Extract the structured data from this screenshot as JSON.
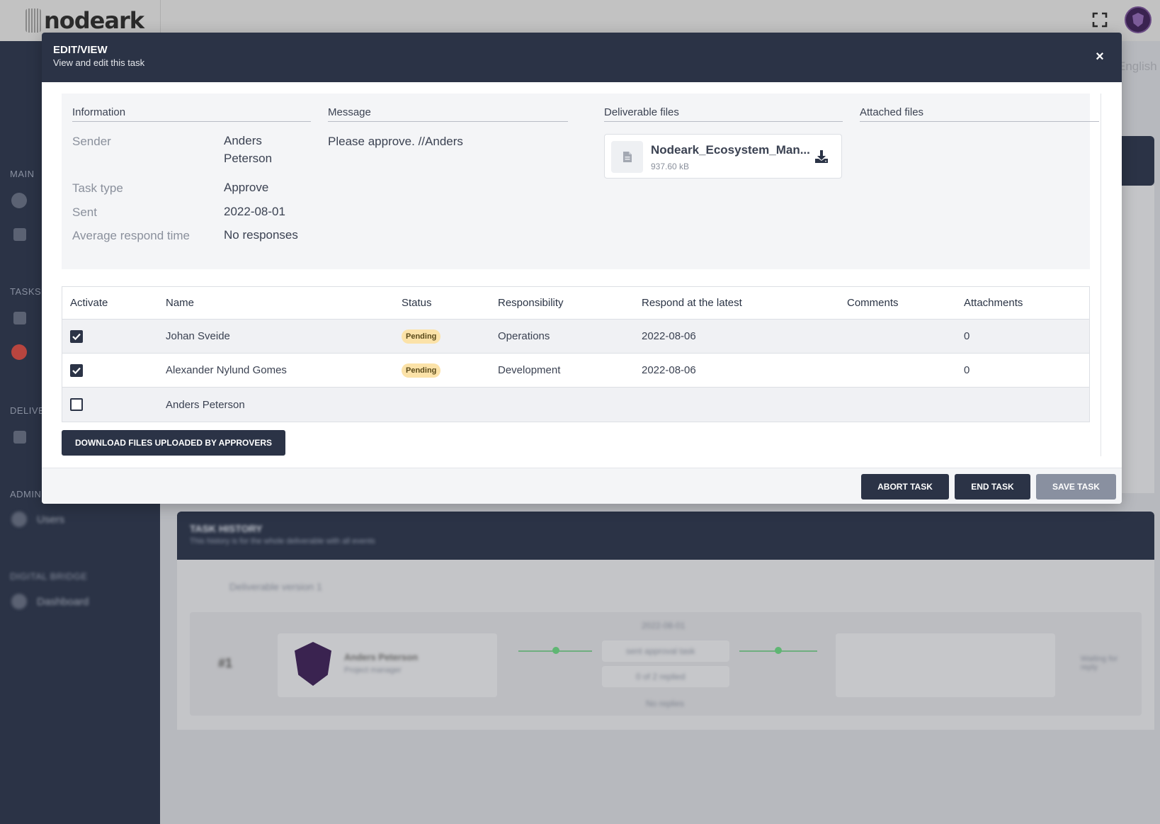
{
  "app": {
    "logo_text": "nodeark",
    "language": "English"
  },
  "sidebar": {
    "sections": [
      "MAIN",
      "TASKS",
      "DELIVE",
      "ADMIN",
      "DIGITAL BRIDGE"
    ],
    "items": [
      "Users",
      "Dashboard"
    ]
  },
  "history": {
    "title": "TASK HISTORY",
    "subtitle": "This history is for the whole deliverable with all events",
    "version_label": "Deliverable version 1",
    "row_index": "#1",
    "person": "Anders Peterson",
    "role": "Project manager",
    "date": "2022-08-01",
    "action1": "sent approval task",
    "action2": "0 of 2 replied",
    "no_replies": "No replies",
    "status_note": "Waiting for reply"
  },
  "modal": {
    "title": "EDIT/VIEW",
    "subtitle": "View and edit this task",
    "close_symbol": "×",
    "sections": {
      "information": "Information",
      "message": "Message",
      "deliverable_files": "Deliverable files",
      "attached_files": "Attached files"
    },
    "info": {
      "sender_label": "Sender",
      "sender_value": "Anders Peterson",
      "task_type_label": "Task type",
      "task_type_value": "Approve",
      "sent_label": "Sent",
      "sent_value": "2022-08-01",
      "avg_label": "Average respond time",
      "avg_value": "No responses"
    },
    "message": "Please approve. //Anders",
    "file": {
      "name": "Nodeark_Ecosystem_Man...",
      "size": "937.60 kB"
    },
    "table": {
      "headers": [
        "Activate",
        "Name",
        "Status",
        "Responsibility",
        "Respond at the latest",
        "Comments",
        "Attachments"
      ],
      "rows": [
        {
          "checked": true,
          "name": "Johan Sveide",
          "status": "Pending",
          "responsibility": "Operations",
          "respond_by": "2022-08-06",
          "comments": "",
          "attachments": "0"
        },
        {
          "checked": true,
          "name": "Alexander Nylund Gomes",
          "status": "Pending",
          "responsibility": "Development",
          "respond_by": "2022-08-06",
          "comments": "",
          "attachments": "0"
        },
        {
          "checked": false,
          "name": "Anders Peterson",
          "status": "",
          "responsibility": "",
          "respond_by": "",
          "comments": "",
          "attachments": ""
        }
      ]
    },
    "download_button": "DOWNLOAD FILES UPLOADED BY APPROVERS",
    "footer": {
      "abort": "ABORT TASK",
      "end": "END TASK",
      "save": "SAVE TASK"
    }
  },
  "colors": {
    "navy": "#2b3346",
    "pending_badge": "#fbe2a8",
    "save_disabled": "#8990a0"
  }
}
